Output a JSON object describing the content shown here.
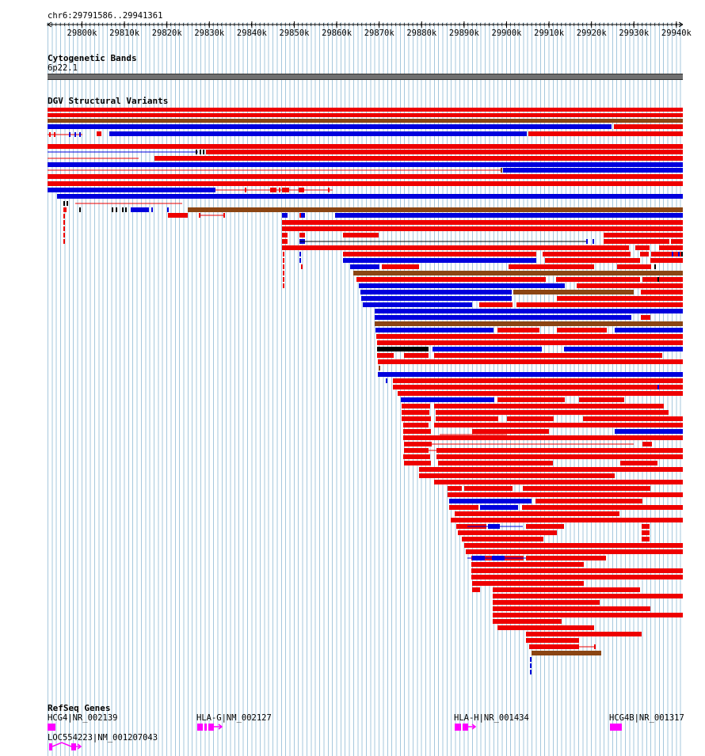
{
  "ruler": {
    "location": "chr6:29791586..29941361",
    "ticks": [
      "29800k",
      "29810k",
      "29820k",
      "29830k",
      "29840k",
      "29850k",
      "29860k",
      "29870k",
      "29880k",
      "29890k",
      "29900k",
      "29910k",
      "29920k",
      "29930k",
      "29940k"
    ]
  },
  "cytoband": {
    "title": "Cytogenetic Bands",
    "band": "6p22.1"
  },
  "dgv": {
    "title": "DGV Structural Variants"
  },
  "refseq": {
    "title": "RefSeq Genes",
    "genes": [
      {
        "label": "HCG4|NR_002139"
      },
      {
        "label": "HLA-G|NM_002127"
      },
      {
        "label": "HLA-H|NR_001434"
      },
      {
        "label": "HCG4B|NR_001317"
      },
      {
        "label": "LOC554223|NM_001207043"
      }
    ]
  },
  "colors": {
    "gain": "#ee0000",
    "loss": "#0000dd",
    "both": "#8b4513",
    "inversion": "#000000",
    "gene": "#ff00ff",
    "grid": "#96bed7",
    "band": "#707070"
  }
}
